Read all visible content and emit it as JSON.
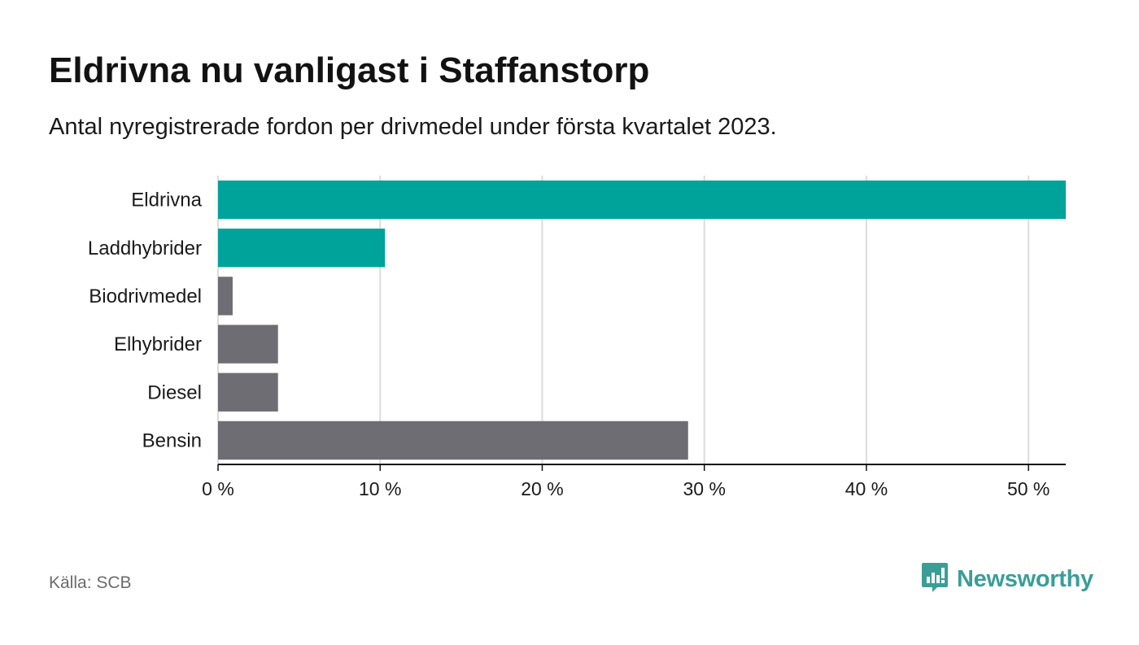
{
  "header": {
    "title": "Eldrivna nu vanligast i Staffanstorp",
    "subtitle": "Antal nyregistrerade fordon per drivmedel under första kvartalet 2023."
  },
  "footer": {
    "source": "Källa: SCB",
    "brand": "Newsworthy",
    "brand_icon": "bar-chart-speech-bubble-icon"
  },
  "colors": {
    "highlight": "#00a39a",
    "neutral": "#6e6d73",
    "brand": "#3a9e97"
  },
  "chart_data": {
    "type": "bar",
    "orientation": "horizontal",
    "title": "Eldrivna nu vanligast i Staffanstorp",
    "subtitle": "Antal nyregistrerade fordon per drivmedel under första kvartalet 2023.",
    "xlabel": "",
    "ylabel": "",
    "unit": "%",
    "categories": [
      "Eldrivna",
      "Laddhybrider",
      "Biodrivmedel",
      "Elhybrider",
      "Diesel",
      "Bensin"
    ],
    "values": [
      52.3,
      10.3,
      0.9,
      3.7,
      3.7,
      29.0
    ],
    "highlighted": [
      true,
      true,
      false,
      false,
      false,
      false
    ],
    "xlim": [
      0,
      52.3
    ],
    "xticks": [
      0,
      10,
      20,
      30,
      40,
      50
    ],
    "xtick_labels": [
      "0 %",
      "10 %",
      "20 %",
      "30 %",
      "40 %",
      "50 %"
    ],
    "grid": "vertical"
  }
}
